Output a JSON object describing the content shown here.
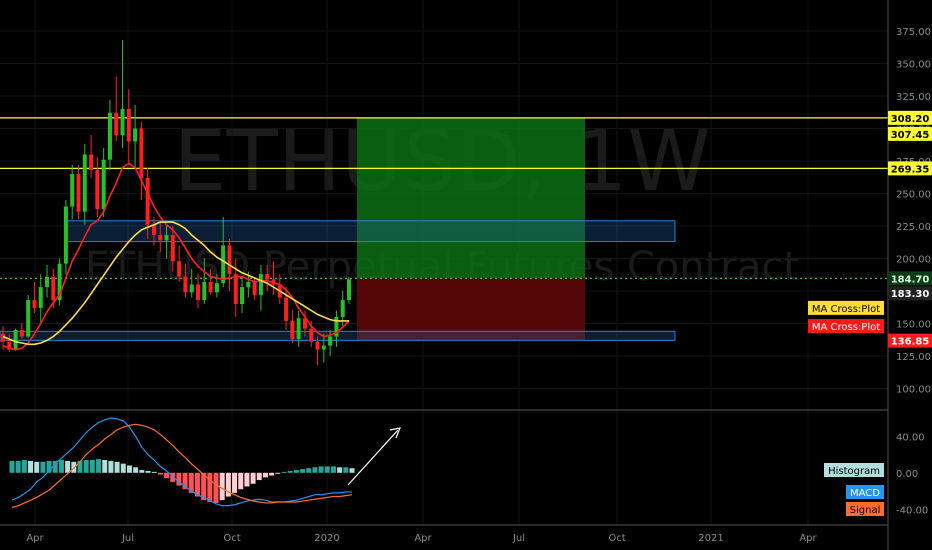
{
  "chart_data": [
    {
      "type": "candlestick",
      "symbol": "ETHUSD",
      "interval": "1W",
      "watermark": "ETHUSD, 1W",
      "watermark_subtitle": "ETHUSD Perpetual Futures Contract",
      "price_axis": {
        "ticks": [
          100,
          125,
          150,
          175,
          200,
          225,
          250,
          275,
          300,
          325,
          350,
          375
        ],
        "ylim": [
          85,
          395
        ]
      },
      "time_axis": [
        "Apr",
        "Jul",
        "Oct",
        "2020",
        "Apr",
        "Jul",
        "Oct",
        "2021",
        "Apr"
      ],
      "candles": [
        [
          142,
          148,
          130,
          136
        ],
        [
          136,
          142,
          128,
          130
        ],
        [
          130,
          146,
          129,
          145
        ],
        [
          145,
          150,
          138,
          140
        ],
        [
          140,
          172,
          139,
          168
        ],
        [
          168,
          182,
          158,
          162
        ],
        [
          162,
          188,
          150,
          178
        ],
        [
          178,
          195,
          170,
          186
        ],
        [
          186,
          192,
          162,
          168
        ],
        [
          168,
          200,
          164,
          196
        ],
        [
          196,
          245,
          188,
          240
        ],
        [
          240,
          272,
          230,
          265
        ],
        [
          265,
          272,
          230,
          236
        ],
        [
          236,
          288,
          226,
          280
        ],
        [
          280,
          295,
          262,
          268
        ],
        [
          268,
          278,
          232,
          238
        ],
        [
          238,
          285,
          232,
          276
        ],
        [
          276,
          322,
          268,
          312
        ],
        [
          312,
          340,
          290,
          295
        ],
        [
          295,
          368,
          285,
          315
        ],
        [
          315,
          330,
          272,
          290
        ],
        [
          290,
          318,
          270,
          300
        ],
        [
          300,
          305,
          245,
          262
        ],
        [
          262,
          270,
          215,
          226
        ],
        [
          226,
          232,
          210,
          218
        ],
        [
          218,
          230,
          205,
          214
        ],
        [
          214,
          226,
          200,
          218
        ],
        [
          218,
          225,
          190,
          198
        ],
        [
          198,
          210,
          182,
          186
        ],
        [
          186,
          196,
          170,
          174
        ],
        [
          174,
          192,
          170,
          180
        ],
        [
          180,
          188,
          162,
          168
        ],
        [
          168,
          200,
          165,
          182
        ],
        [
          182,
          192,
          172,
          174
        ],
        [
          174,
          188,
          170,
          181
        ],
        [
          181,
          232,
          178,
          210
        ],
        [
          210,
          215,
          175,
          188
        ],
        [
          188,
          200,
          155,
          165
        ],
        [
          165,
          186,
          158,
          178
        ],
        [
          178,
          190,
          170,
          182
        ],
        [
          182,
          186,
          168,
          172
        ],
        [
          172,
          195,
          160,
          188
        ],
        [
          188,
          195,
          175,
          184
        ],
        [
          184,
          198,
          172,
          180
        ],
        [
          180,
          188,
          165,
          170
        ],
        [
          170,
          178,
          145,
          152
        ],
        [
          152,
          160,
          135,
          138
        ],
        [
          138,
          160,
          132,
          154
        ],
        [
          154,
          160,
          140,
          146
        ],
        [
          146,
          152,
          132,
          136
        ],
        [
          136,
          140,
          118,
          130
        ],
        [
          130,
          142,
          120,
          133
        ],
        [
          133,
          145,
          125,
          140
        ],
        [
          140,
          160,
          132,
          155
        ],
        [
          155,
          175,
          148,
          168
        ],
        [
          168,
          186,
          165,
          184
        ]
      ],
      "series": [
        {
          "name": "",
          "color": "#ff1f1f",
          "values": [
            133,
            131,
            130,
            131,
            135,
            142,
            150,
            159,
            166,
            172,
            185,
            198,
            207,
            217,
            226,
            229,
            236,
            248,
            258,
            270,
            273,
            270,
            260,
            250,
            240,
            232,
            226,
            222,
            216,
            208,
            200,
            194,
            190,
            186,
            185,
            184,
            185,
            186,
            186,
            184,
            182,
            183,
            183,
            181,
            180,
            176,
            170,
            162,
            155,
            148,
            143,
            140,
            141,
            143,
            147,
            152
          ]
        },
        {
          "name": "",
          "color": "#ffdd44",
          "values": [
            140,
            138,
            136,
            135,
            134,
            134,
            135,
            137,
            140,
            144,
            149,
            154,
            160,
            166,
            173,
            180,
            187,
            194,
            201,
            207,
            213,
            218,
            222,
            224,
            226,
            228,
            228,
            228,
            226,
            223,
            218,
            214,
            210,
            205,
            201,
            198,
            195,
            192,
            189,
            187,
            185,
            183,
            181,
            178,
            175,
            172,
            169,
            166,
            163,
            160,
            157,
            155,
            153,
            152,
            152,
            152
          ]
        }
      ],
      "horizontal_lines": [
        {
          "price": 308.2,
          "color": "#ffff33"
        },
        {
          "price": 269.35,
          "color": "#ffff33"
        },
        {
          "price": 184.7,
          "color": "#4caf50",
          "dotted": true
        }
      ],
      "zones": [
        {
          "from": 213,
          "to": 229,
          "color": "#1e5a9a"
        },
        {
          "from": 137,
          "to": 144,
          "color": "#1e5a9a"
        }
      ],
      "position_tool": {
        "entry": 184.7,
        "target": 308.2,
        "stop": 137
      },
      "price_labels": [
        {
          "text": "308.20",
          "price": 308.2,
          "bg": "#ffff33",
          "fg": "#000000"
        },
        {
          "text": "307.45",
          "price": 307.45,
          "bg": "#ffff33",
          "fg": "#000000"
        },
        {
          "text": "269.35",
          "price": 269.35,
          "bg": "#ffff33",
          "fg": "#000000"
        },
        {
          "text": "184.70",
          "price": 184.7,
          "bg": "#0d3b16",
          "fg": "#d7f5d9"
        },
        {
          "text": "183.30",
          "price": 183.3,
          "bg": "#222222",
          "fg": "#ffffff"
        },
        {
          "text": "136.85",
          "price": 136.85,
          "bg": "#ff1a1a",
          "fg": "#ffffff"
        }
      ],
      "overlay_labels": [
        {
          "text": "MA Cross:Plot",
          "price": 162,
          "bg": "#ffdd33",
          "fg": "#000000"
        },
        {
          "text": "MA Cross:Plot",
          "price": 148,
          "bg": "#ff1a1a",
          "fg": "#ffffff"
        }
      ]
    },
    {
      "type": "macd",
      "y_ticks": [
        40,
        0,
        -40
      ],
      "ylim": [
        -55,
        60
      ],
      "histogram": [
        13,
        13,
        14,
        13,
        12,
        12,
        13,
        13,
        14,
        13,
        12,
        13,
        14,
        14,
        15,
        14,
        13,
        12,
        10,
        8,
        6,
        3,
        2,
        1,
        -2,
        -6,
        -10,
        -14,
        -18,
        -22,
        -26,
        -30,
        -32,
        -33,
        -30,
        -26,
        -22,
        -18,
        -15,
        -12,
        -8,
        -5,
        -3,
        -1,
        1,
        2,
        3,
        4,
        5,
        6,
        7,
        7,
        7,
        6,
        6,
        5
      ],
      "series": [
        {
          "name": "MACD",
          "color": "#2196f3",
          "values": [
            -30,
            -27,
            -23,
            -18,
            -10,
            -5,
            2,
            10,
            16,
            22,
            28,
            36,
            44,
            50,
            55,
            58,
            60,
            59,
            57,
            50,
            40,
            28,
            20,
            14,
            7,
            2,
            -4,
            -10,
            -15,
            -20,
            -24,
            -27,
            -30,
            -34,
            -36,
            -36,
            -35,
            -33,
            -31,
            -30,
            -29,
            -30,
            -32,
            -32,
            -32,
            -31,
            -30,
            -28,
            -26,
            -24,
            -24,
            -23,
            -22,
            -22,
            -21,
            -21
          ]
        },
        {
          "name": "Signal",
          "color": "#ff6d2e",
          "values": [
            -38,
            -36,
            -33,
            -30,
            -27,
            -23,
            -19,
            -13,
            -7,
            -1,
            5,
            12,
            20,
            26,
            31,
            37,
            42,
            47,
            50,
            52,
            53,
            52,
            50,
            47,
            42,
            36,
            30,
            23,
            17,
            10,
            4,
            -2,
            -8,
            -13,
            -17,
            -21,
            -24,
            -27,
            -29,
            -31,
            -32,
            -33,
            -33,
            -32,
            -32,
            -32,
            -32,
            -31,
            -30,
            -29,
            -28,
            -27,
            -26,
            -26,
            -25,
            -24
          ]
        }
      ],
      "value_labels": [
        {
          "text": "Histogram",
          "bg": "#b2dfdb",
          "fg": "#000000"
        },
        {
          "text": "MACD",
          "bg": "#2196f3",
          "fg": "#ffffff"
        },
        {
          "text": "Signal",
          "bg": "#ff6d2e",
          "fg": "#000000"
        }
      ]
    }
  ]
}
